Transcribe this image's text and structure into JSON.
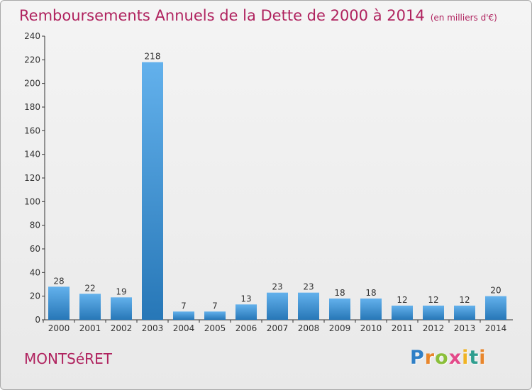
{
  "header": {
    "title": "Remboursements Annuels de la Dette de 2000 à 2014",
    "subtitle": "(en milliers d'€)"
  },
  "footer": {
    "town": "MONTSéRET",
    "logo_letters": [
      "P",
      "r",
      "o",
      "x",
      "i",
      "t",
      "i"
    ],
    "logo_colors": [
      "#2f7fc6",
      "#e8862c",
      "#8bbf3a",
      "#e34a8a",
      "#f0b323",
      "#2f9e8f",
      "#e8862c"
    ]
  },
  "colors": {
    "bar_top": "#63b1ec",
    "bar_bottom": "#2777b7",
    "axis": "#333333",
    "label": "#333333"
  },
  "chart_data": {
    "type": "bar",
    "title": "Remboursements Annuels de la Dette de 2000 à 2014",
    "subtitle": "(en milliers d'€)",
    "xlabel": "",
    "ylabel": "",
    "categories": [
      "2000",
      "2001",
      "2002",
      "2003",
      "2004",
      "2005",
      "2006",
      "2007",
      "2008",
      "2009",
      "2010",
      "2011",
      "2012",
      "2013",
      "2014"
    ],
    "values": [
      28,
      22,
      19,
      218,
      7,
      7,
      13,
      23,
      23,
      18,
      18,
      12,
      12,
      12,
      20
    ],
    "data_labels": [
      "28",
      "22",
      "19",
      "218",
      "7",
      "7",
      "13",
      "23",
      "23",
      "18",
      "18",
      "12",
      "12",
      "12",
      "20"
    ],
    "ylim": [
      0,
      240
    ],
    "yticks": [
      0,
      20,
      40,
      60,
      80,
      100,
      120,
      140,
      160,
      180,
      200,
      220,
      240
    ],
    "grid": false,
    "legend": "none"
  }
}
